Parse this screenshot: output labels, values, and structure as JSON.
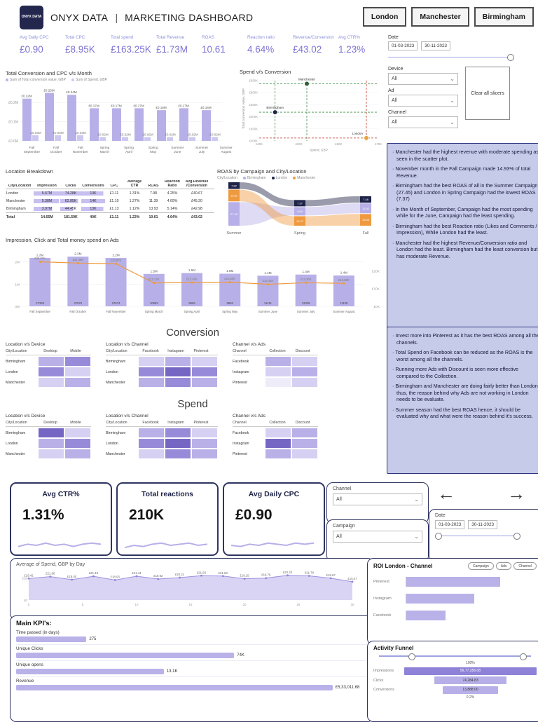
{
  "icons": {
    "chevron_down": "⌄",
    "arrow_left": "←",
    "arrow_right": "→"
  },
  "colors": {
    "accent_purple": "#7d74d4",
    "bar_light": "#b7b0e8",
    "bar_pale": "#cdc8f0",
    "bar_mid": "#8d82d8",
    "navy": "#1e2348",
    "orange": "#ef9a3f",
    "insight_bg": "#c7cbea",
    "insight_border": "#2d3580",
    "green": "#3f8f4a",
    "red": "#c0392b"
  },
  "header": {
    "logo_text": "ONYX DATA",
    "brand": "ONYX DATA",
    "separator": "|",
    "title": "MARKETING DASHBOARD",
    "city_buttons": [
      "London",
      "Manchester",
      "Birmingham"
    ]
  },
  "kpis": [
    {
      "label": "Avg Daily CPC",
      "value": "£0.90"
    },
    {
      "label": "Total CPC",
      "value": "£8.95K"
    },
    {
      "label": "Total spend",
      "value": "£163.25K"
    },
    {
      "label": "Total Revenue",
      "value": "£1.73M"
    },
    {
      "label": "ROAS",
      "value": "10.61"
    },
    {
      "label": "Reaction ratio",
      "value": "4.64%"
    },
    {
      "label": "Revenue/Conversion",
      "value": "£43.02"
    },
    {
      "label": "Avg CTR%",
      "value": "1.23%"
    }
  ],
  "filters": {
    "date_label": "Date",
    "date_from": "01-03-2023",
    "date_to": "30-11-2023",
    "device_label": "Device",
    "device_value": "All",
    "ad_label": "Ad",
    "ad_value": "All",
    "channel_label": "Channel",
    "channel_value": "All",
    "clear_button": "Clear all slicers"
  },
  "section_headings": {
    "conversion": "Conversion",
    "spend": "Spend"
  },
  "insights": {
    "panel1": [
      "Manchester had the highest revenue with moderate spending as seen in the scatter plot.",
      "November month in the Fall Campaign made 14.93% of total Revenue.",
      "Birmingham had the best ROAS of all in the Summer Campaign (27.45) and London in Spring Campaign had the lowest ROAS (7.37)",
      "In the Month of September, Campaign had the most spending while for the June, Campaign had the least spending.",
      "Birmingham had the best Reaction ratio (Likes and Comments / Impression), While London had the least.",
      "Manchester had the highest Revenue/Conversion ratio and London had the least. Birmingham had the least conversion but has moderate Revenue."
    ],
    "panel2": [
      "Invest more into Pinterest as it has the best ROAS among all the channels.",
      "Total Spend on Facebook can be reduced as the ROAS is the worst among all the channels.",
      "Running more Ads with Discount is seen more effective compared to the Collection.",
      "Birmingham and Manchester are doing fairly better than London thus, the reason behind why Ads are not working in London needs to be evaluate.",
      "Summer season had the best ROAS hence, it should be evaluated why and what were the reason behind it's success."
    ]
  },
  "location_table": {
    "title": "Location Breakdown",
    "columns": [
      "City/Location",
      "Impression",
      "Clicks",
      "Conversions",
      "CPC",
      "Average CTR",
      "ROAS",
      "Reaction Ratio",
      "Avg.Revenue /Conversion"
    ],
    "rows": [
      [
        "London",
        "5.67M",
        "74.28K",
        "13K",
        "£1.11",
        "1.31%",
        "7.98",
        "4.25%",
        "£40.67"
      ],
      [
        "Manchester",
        "5.38M",
        "62.85K",
        "14K",
        "£1.10",
        "1.27%",
        "11.39",
        "4.69%",
        "£45.20"
      ],
      [
        "Birmingham",
        "3.97M",
        "44.45K",
        "13K",
        "£1.13",
        "1.12%",
        "13.93",
        "5.14%",
        "£42.98"
      ]
    ],
    "bar_pcts": [
      [
        null,
        100,
        100,
        93,
        null,
        null,
        null,
        null,
        null
      ],
      [
        null,
        95,
        85,
        100,
        null,
        null,
        null,
        null,
        null
      ],
      [
        null,
        70,
        60,
        93,
        null,
        null,
        null,
        null,
        null
      ]
    ],
    "total": [
      "Total",
      "14.65M",
      "181.59K",
      "40K",
      "£1.11",
      "1.23%",
      "10.61",
      "4.64%",
      "£43.02"
    ]
  },
  "heatmaps": {
    "palette": [
      "#efecfa",
      "#d6d0f2",
      "#b9b0e8",
      "#978bd9",
      "#7566c4"
    ],
    "conversion": [
      {
        "title": "Location v/s Device",
        "col_header": "City/Location",
        "cols": [
          "Desktop",
          "Mobile"
        ],
        "rows": [
          "Birmingham",
          "London",
          "Manchester"
        ],
        "cells": [
          [
            2,
            3
          ],
          [
            3,
            1
          ],
          [
            1,
            2
          ]
        ]
      },
      {
        "title": "Location v/s Channel",
        "col_header": "City/Location",
        "cols": [
          "Facebook",
          "Instagram",
          "Pinterest"
        ],
        "rows": [
          "Birmingham",
          "London",
          "Manchester"
        ],
        "cells": [
          [
            1,
            2,
            1
          ],
          [
            3,
            4,
            3
          ],
          [
            2,
            3,
            2
          ]
        ]
      },
      {
        "title": "Channel v/s Ads",
        "col_header": "Channel",
        "cols": [
          "Collection",
          "Discount"
        ],
        "rows": [
          "Facebook",
          "Instagram",
          "Pinterest"
        ],
        "cells": [
          [
            2,
            1
          ],
          [
            1,
            2
          ],
          [
            0,
            1
          ]
        ]
      }
    ],
    "spend": [
      {
        "title": "Location v/s Device",
        "col_header": "City/Location",
        "cols": [
          "Desktop",
          "Mobile"
        ],
        "rows": [
          "Birmingham",
          "London",
          "Manchester"
        ],
        "cells": [
          [
            4,
            1
          ],
          [
            2,
            3
          ],
          [
            1,
            2
          ]
        ]
      },
      {
        "title": "Location v/s Channel",
        "col_header": "City/Location",
        "cols": [
          "Facebook",
          "Instagram",
          "Pinterest"
        ],
        "rows": [
          "Birmingham",
          "London",
          "Manchester"
        ],
        "cells": [
          [
            2,
            3,
            1
          ],
          [
            3,
            4,
            2
          ],
          [
            1,
            3,
            2
          ]
        ]
      },
      {
        "title": "Channel v/s Ads",
        "col_header": "Channel",
        "cols": [
          "Collection",
          "Discount"
        ],
        "rows": [
          "Facebook",
          "Instagram",
          "Pinterest"
        ],
        "cells": [
          [
            1,
            2
          ],
          [
            4,
            2
          ],
          [
            2,
            1
          ]
        ]
      }
    ]
  },
  "chart_data": [
    {
      "id": "conversion_cpc",
      "type": "bar",
      "title": "Total Conversion and CPC v/s Month",
      "legend": [
        "Sum of Total conversion value, GBP",
        "Sum of Spend, GBP"
      ],
      "categories": [
        "Fall September",
        "Fall October",
        "Fall November",
        "Spring March",
        "Spring April",
        "Spring May",
        "Summer June",
        "Summer July",
        "Summer August"
      ],
      "series": [
        {
          "name": "Sum of Total conversion value, GBP",
          "values": [
            0.22,
            0.25,
            0.24,
            0.17,
            0.17,
            0.17,
            0.16,
            0.17,
            0.16
          ],
          "labels": [
            "£0.22M",
            "£0.25M",
            "£0.24M",
            "£0.17M",
            "£0.17M",
            "£0.17M",
            "£0.16M",
            "£0.17M",
            "£0.16M"
          ]
        },
        {
          "name": "Sum of Spend, GBP",
          "values": [
            0.03,
            0.03,
            0.03,
            0.02,
            0.02,
            0.02,
            0.02,
            0.02,
            0.02
          ],
          "labels": [
            "£0.03M",
            "£0.03M",
            "£0.03M",
            "£0.02M",
            "£0.02M",
            "£0.02M",
            "£0.02M",
            "£0.02M",
            "£0.02M"
          ]
        }
      ],
      "ylim": [
        0,
        0.27
      ],
      "yticks": [
        {
          "v": 0.2,
          "label": "£0.2M"
        },
        {
          "v": 0.1,
          "label": "£0.1M"
        },
        {
          "v": 0,
          "label": "£0.0M"
        }
      ]
    },
    {
      "id": "spend_vs_conversion",
      "type": "scatter",
      "title": "Spend v/s Conversion",
      "xlabel": "Spend, GBP",
      "ylabel": "Total conversion value, GBP",
      "xlim": [
        40,
        70
      ],
      "ylim": [
        400,
        650
      ],
      "xticks": [
        "£40K",
        "£50K",
        "£60K",
        "£70K"
      ],
      "yticks": [
        "£650K",
        "£600K",
        "£550K",
        "£500K",
        "£450K",
        "£400K"
      ],
      "points": [
        {
          "name": "Manchester",
          "x": 52,
          "y": 637,
          "color": "#2e5e33"
        },
        {
          "name": "Birmingham",
          "x": 44,
          "y": 519,
          "color": "#1e2348"
        },
        {
          "name": "London",
          "x": 67,
          "y": 412,
          "color": "#e8a33d"
        }
      ]
    },
    {
      "id": "roas_ribbon",
      "type": "area",
      "title": "ROAS by Campaign and City/Location",
      "legend_label": "City/Location",
      "legend": [
        "Birmingham",
        "London",
        "Manchester"
      ],
      "legend_colors": [
        "#b7b0e8",
        "#1e2348",
        "#ef9a3f"
      ],
      "categories": [
        "Summer",
        "Spring",
        "Fall"
      ],
      "series": [
        {
          "name": "Birmingham",
          "values": [
            27.45,
            9.8,
            11.5
          ]
        },
        {
          "name": "London",
          "values": [
            7.82,
            7.37,
            7.48
          ]
        },
        {
          "name": "Manchester",
          "values": [
            13.61,
            11.07,
            13.63
          ]
        }
      ]
    },
    {
      "id": "impression_click_spend",
      "type": "bar",
      "title": "Impression, Click and Total money spend on Ads",
      "categories": [
        "Fall September",
        "Fall October",
        "Fall November",
        "Spring March",
        "Spring April",
        "Spring May",
        "Summer June",
        "Summer July",
        "Summer August"
      ],
      "impressions": [
        2.18,
        2.24,
        2.18,
        1.46,
        1.5,
        1.47,
        1.38,
        1.43,
        1.39
      ],
      "impression_labels": [
        "2.2M",
        "2.2M",
        "2.2M",
        "1.5M",
        "1.5M",
        "1.5M",
        "1.4M",
        "1.4M",
        "1.4M"
      ],
      "clicks": [
        "27339",
        "27676",
        "27674",
        "10653",
        "9965",
        "9863",
        "11411",
        "12009",
        "11105"
      ],
      "spend_line": [
        25.07,
        24.35,
        23.97,
        13.17,
        13.41,
        13.63,
        12.41,
        13.3,
        12.92
      ],
      "spend_labels": [
        "£25.07K",
        "£24.35K",
        "£23.97K",
        "£13.17K",
        "£13.41K",
        "£13.63K",
        "£12.41K",
        "£13.30K",
        "£12.92K"
      ],
      "left_ticks": [
        {
          "v": 2,
          "label": "2M"
        },
        {
          "v": 1,
          "label": "1M"
        },
        {
          "v": 0,
          "label": "0M"
        }
      ],
      "right_ticks": [
        {
          "v": 20,
          "label": "£20K"
        },
        {
          "v": 10,
          "label": "£10K"
        },
        {
          "v": 0,
          "label": "£0K"
        }
      ]
    },
    {
      "id": "avg_spend_by_day",
      "type": "area",
      "title": "Average of Spend, GBP by Day",
      "values": [
        19.42,
        21.06,
        18.4,
        21.4,
        18.03,
        21.44,
        18.92,
        20.21,
        21.93,
        21.63,
        19.15,
        19.76,
        22.23,
        21.79,
        19.67,
        16.47
      ],
      "labels": [
        "£19.42",
        "£21.06",
        "£18.40",
        "£21.40",
        "£18.03",
        "£21.44",
        "£18.92",
        "£20.21",
        "£21.93",
        "£21.63",
        "£19.15",
        "£19.76",
        "£22.23",
        "£21.79",
        "£19.67",
        "£16.47"
      ],
      "xticks": [
        "0",
        "5",
        "10",
        "15",
        "20",
        "25",
        "30"
      ],
      "yticks": [
        {
          "v": 20,
          "label": "£20"
        },
        {
          "v": 0,
          "label": "£0"
        }
      ],
      "ylim": [
        0,
        24
      ]
    }
  ],
  "bottom": {
    "cards": [
      {
        "title": "Avg CTR%",
        "value": "1.31%",
        "spark": [
          4,
          6,
          5,
          7,
          5,
          6,
          4,
          6,
          7,
          6
        ]
      },
      {
        "title": "Total reactions",
        "value": "210K",
        "spark": [
          3,
          5,
          4,
          6,
          7,
          5,
          6,
          7,
          5,
          6
        ]
      },
      {
        "title": "Avg Daily CPC",
        "value": "£0.90",
        "spark": [
          5,
          4,
          6,
          5,
          7,
          6,
          5,
          7,
          6,
          7
        ]
      }
    ],
    "channel_label": "Channel",
    "channel_value": "All",
    "campaign_label": "Campaign",
    "campaign_value": "All",
    "date_label": "Date",
    "date_from": "01-03-2023",
    "date_to": "30-11-2023",
    "main_kpis": {
      "title": "Main KPI's:",
      "items": [
        {
          "label": "Time passed (in days)",
          "value": "275",
          "pct": 20
        },
        {
          "label": "Unique Clicks",
          "value": "74K",
          "pct": 62
        },
        {
          "label": "Unique opens",
          "value": "13.1K",
          "pct": 42
        },
        {
          "label": "Revenue",
          "value": "£5,33,011.68",
          "pct": 90
        }
      ]
    },
    "roi": {
      "title": "ROI London - Channel",
      "buttons": [
        "Campaign",
        "Ads",
        "Channel"
      ],
      "categories": [
        "Pinterest",
        "Instagram",
        "Facebook"
      ],
      "values": [
        72,
        52,
        30
      ]
    },
    "funnel": {
      "title": "Activity Funnel",
      "top_pct": "100%",
      "bottom_pct": "0.2%",
      "items": [
        {
          "label": "Impressions",
          "value": "56,77,356.08",
          "pct": 100
        },
        {
          "label": "Clicks",
          "value": "74,284.83",
          "pct": 55
        },
        {
          "label": "Conversions",
          "value": "13,888.00",
          "pct": 42
        }
      ]
    }
  }
}
